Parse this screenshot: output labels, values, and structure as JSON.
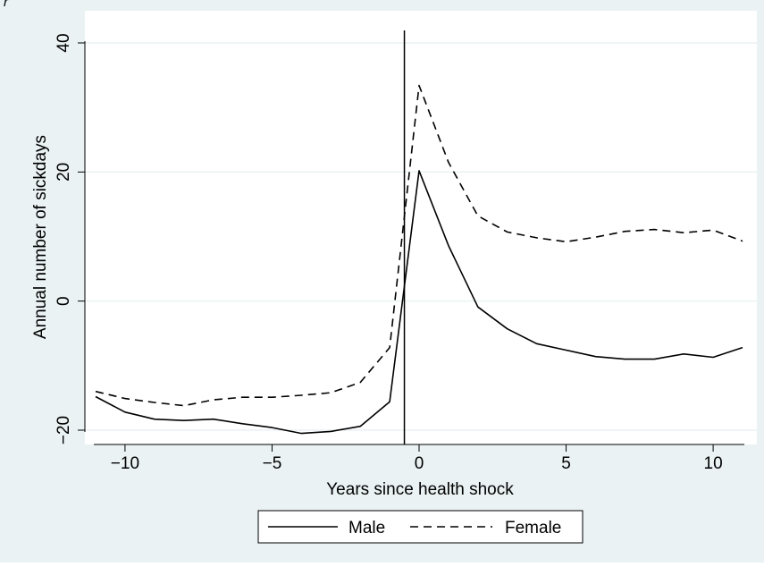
{
  "caption_fragment": "r",
  "chart_data": {
    "type": "line",
    "xlabel": "Years since health shock",
    "ylabel": "Annual number of sickdays",
    "xlim": [
      -11.5,
      11.5
    ],
    "ylim": [
      -22,
      42
    ],
    "xticks": [
      -10,
      -5,
      0,
      5,
      10
    ],
    "xtick_labels": [
      "−10",
      "−5",
      "0",
      "5",
      "10"
    ],
    "yticks": [
      -20,
      0,
      20,
      40
    ],
    "ytick_labels": [
      "−20",
      "0",
      "20",
      "40"
    ],
    "grid": "horizontal",
    "event_line_x": -0.5,
    "legend_position": "bottom",
    "x": [
      -11,
      -10,
      -9,
      -8,
      -7,
      -6,
      -5,
      -4,
      -3,
      -2,
      -1,
      0,
      1,
      2,
      3,
      4,
      5,
      6,
      7,
      8,
      9,
      10,
      11
    ],
    "series": [
      {
        "name": "Male",
        "style": "solid",
        "color": "#000000",
        "values": [
          -14.8,
          -17.2,
          -18.3,
          -18.5,
          -18.3,
          -19.0,
          -19.6,
          -20.5,
          -20.2,
          -19.4,
          -15.6,
          20.2,
          8.6,
          -0.9,
          -4.3,
          -6.6,
          -7.6,
          -8.6,
          -9.0,
          -9.0,
          -8.2,
          -8.7,
          -7.2
        ]
      },
      {
        "name": "Female",
        "style": "dashed",
        "color": "#000000",
        "values": [
          -14.0,
          -15.1,
          -15.7,
          -16.2,
          -15.3,
          -14.9,
          -14.9,
          -14.6,
          -14.2,
          -12.6,
          -7.2,
          33.4,
          21.5,
          13.2,
          10.7,
          9.8,
          9.2,
          9.9,
          10.8,
          11.1,
          10.6,
          11.0,
          9.3
        ]
      }
    ]
  }
}
